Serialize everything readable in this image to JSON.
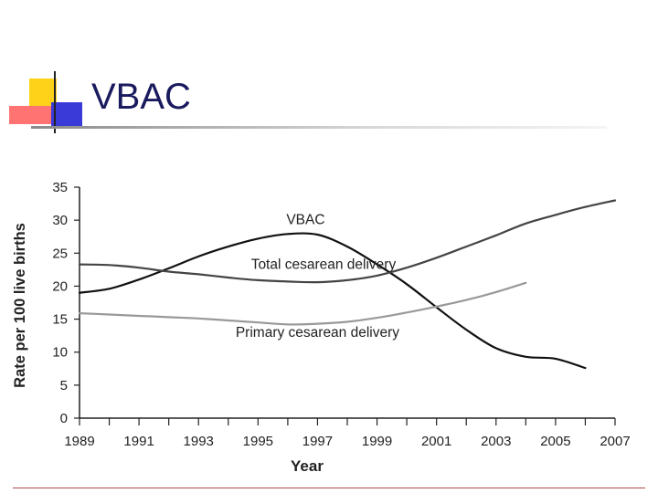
{
  "slide": {
    "title": "VBAC"
  },
  "colors": {
    "title": "#1a1a5e",
    "logo_yellow": "#ffd21a",
    "logo_blue": "#3a3ad8",
    "logo_red": "#ff4a4a",
    "rule": "#a0a0a0",
    "footer_rule": "#b34a4a"
  },
  "chart_data": {
    "type": "line",
    "title": "",
    "xlabel": "Year",
    "ylabel": "Rate per 100 live births",
    "xlim": [
      1989,
      2007
    ],
    "ylim": [
      0,
      35
    ],
    "x_ticks": [
      1989,
      1991,
      1993,
      1995,
      1997,
      1999,
      2001,
      2003,
      2005,
      2007
    ],
    "x_tick_labels": [
      "1989",
      "1991",
      "1993",
      "1995",
      "1997",
      "1999",
      "2001",
      "2003",
      "2005",
      "2007"
    ],
    "y_ticks": [
      0,
      5,
      10,
      15,
      20,
      25,
      30,
      35
    ],
    "y_tick_labels": [
      "0",
      "5",
      "10",
      "15",
      "20",
      "25",
      "30",
      "35"
    ],
    "grid": false,
    "series": [
      {
        "name": "VBAC",
        "color": "#111111",
        "x": [
          1989,
          1990,
          1991,
          1992,
          1993,
          1994,
          1995,
          1996,
          1997,
          1998,
          1999,
          2000,
          2001,
          2002,
          2003,
          2004,
          2005,
          2006
        ],
        "values": [
          19.0,
          19.6,
          21.0,
          22.7,
          24.5,
          26.0,
          27.2,
          27.9,
          27.8,
          26.0,
          23.3,
          20.3,
          16.8,
          13.4,
          10.6,
          9.3,
          9.0,
          7.6
        ]
      },
      {
        "name": "Total cesarean delivery",
        "color": "#444444",
        "x": [
          1989,
          1990,
          1991,
          1992,
          1993,
          1994,
          1995,
          1996,
          1997,
          1998,
          1999,
          2000,
          2001,
          2002,
          2003,
          2004,
          2005,
          2006,
          2007
        ],
        "values": [
          23.3,
          23.2,
          22.8,
          22.2,
          21.8,
          21.3,
          20.9,
          20.7,
          20.6,
          20.9,
          21.6,
          22.8,
          24.3,
          26.0,
          27.7,
          29.5,
          30.8,
          32.0,
          33.0
        ]
      },
      {
        "name": "Primary cesarean delivery",
        "color": "#999999",
        "x": [
          1989,
          1990,
          1991,
          1992,
          1993,
          1994,
          1995,
          1996,
          1997,
          1998,
          1999,
          2000,
          2001,
          2002,
          2003,
          2004
        ],
        "values": [
          15.9,
          15.7,
          15.5,
          15.3,
          15.1,
          14.8,
          14.5,
          14.2,
          14.3,
          14.6,
          15.2,
          16.0,
          16.9,
          17.9,
          19.1,
          20.5
        ]
      }
    ],
    "annotations": [
      {
        "text": "VBAC",
        "x": 1996.6,
        "y": 29.4
      },
      {
        "text": "Total cesarean delivery",
        "x": 1997.2,
        "y": 22.6
      },
      {
        "text": "Primary cesarean delivery",
        "x": 1997.0,
        "y": 12.3
      }
    ]
  }
}
